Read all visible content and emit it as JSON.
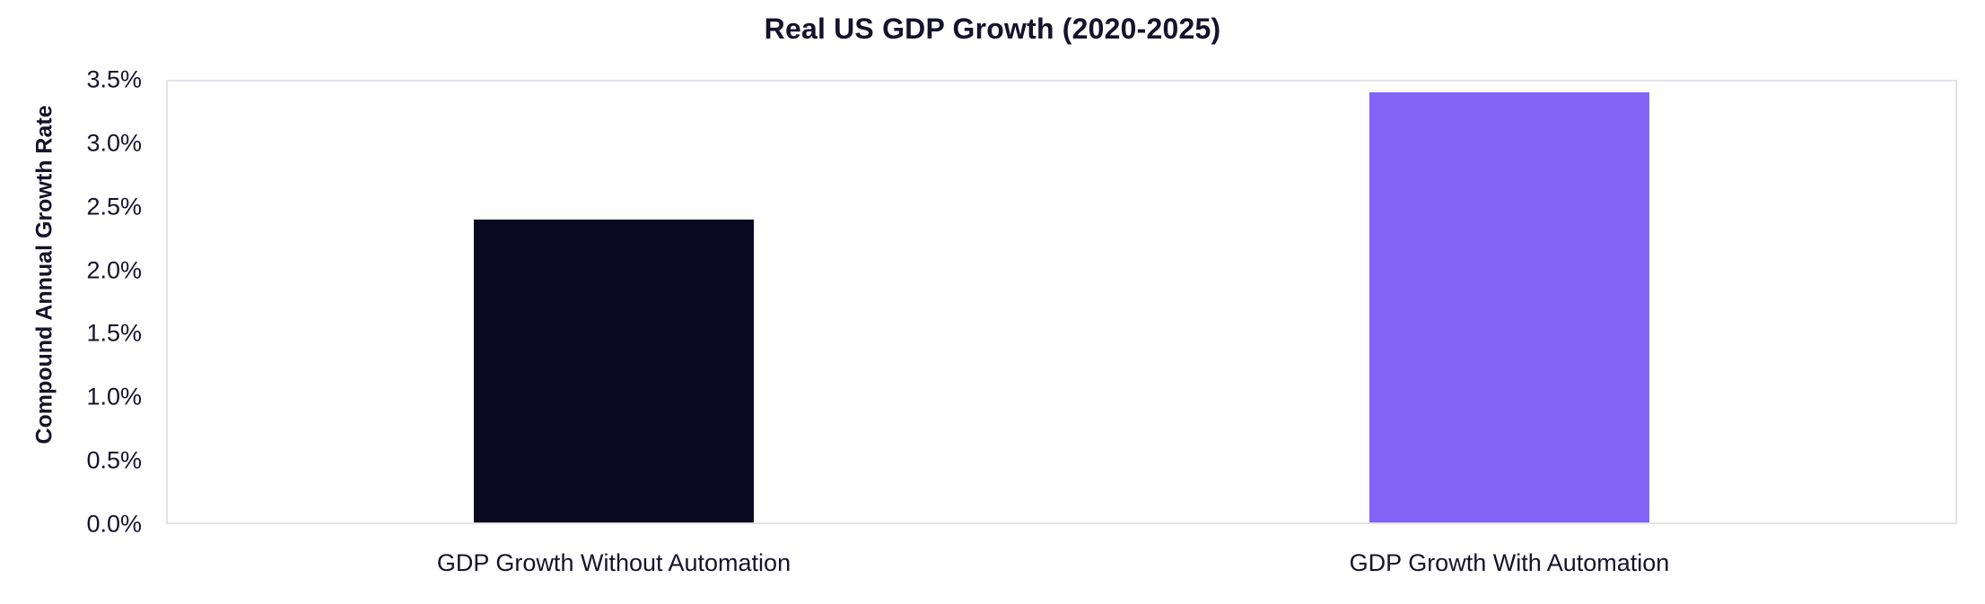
{
  "chart_data": {
    "type": "bar",
    "title": "Real US GDP Growth (2020-2025)",
    "xlabel": "",
    "ylabel": "Compound Annual Growth Rate",
    "categories": [
      "GDP Growth Without Automation",
      "GDP Growth With Automation"
    ],
    "values": [
      2.4,
      3.4
    ],
    "ylim": [
      0,
      3.5
    ],
    "ytick_labels": [
      "0.0%",
      "0.5%",
      "1.0%",
      "1.5%",
      "2.0%",
      "2.5%",
      "3.0%",
      "3.5%"
    ],
    "grid": false,
    "legend_position": "none",
    "bar_colors": [
      "#0B0921",
      "#8165F7"
    ],
    "colors": {
      "text": "#15122B",
      "plot_border": "#E3E2E9",
      "background": "#FFFFFF"
    }
  }
}
